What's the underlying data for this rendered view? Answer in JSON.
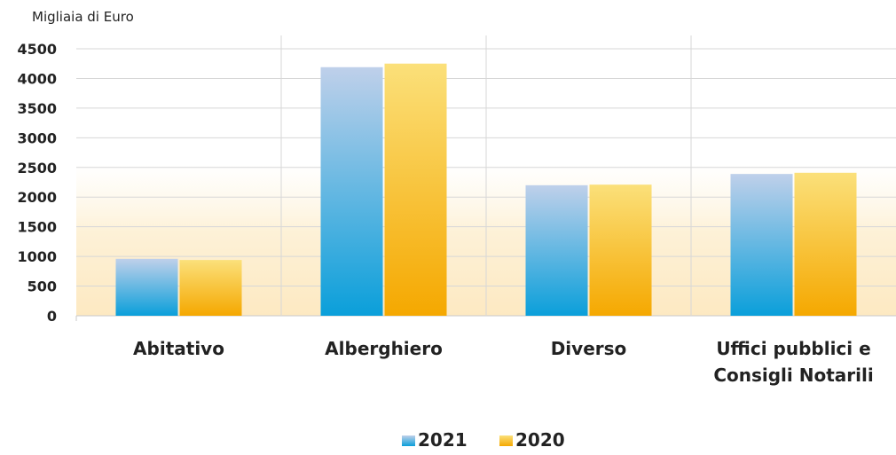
{
  "chart_data": {
    "type": "bar",
    "unit_label": "Migliaia di Euro",
    "categories": [
      [
        "Abitativo"
      ],
      [
        "Alberghiero"
      ],
      [
        "Diverso"
      ],
      [
        "Uffici pubblici e",
        "Consigli Notarili"
      ]
    ],
    "series": [
      {
        "name": "2021",
        "values": [
          960,
          4190,
          2200,
          2390
        ],
        "color_top": "#bfd0ea",
        "color_bottom": "#0a9fda"
      },
      {
        "name": "2020",
        "values": [
          940,
          4250,
          2210,
          2410
        ],
        "color_top": "#fbe07a",
        "color_bottom": "#f5a800"
      }
    ],
    "ylim": [
      0,
      4500
    ],
    "yticks": [
      "0",
      "500",
      "1000",
      "1500",
      "2000",
      "2500",
      "3000",
      "3500",
      "4000",
      "4500"
    ],
    "grid": true,
    "legend_position": "bottom-center"
  }
}
